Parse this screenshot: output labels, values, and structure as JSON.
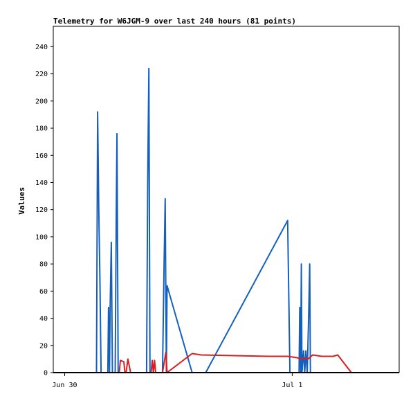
{
  "chart_data": {
    "type": "line",
    "title": "Telemetry for W6JGM-9 over last 240 hours (81 points)",
    "xlabel": "",
    "ylabel": "Values",
    "ylim": [
      0,
      255
    ],
    "yticks": [
      0,
      20,
      40,
      60,
      80,
      100,
      120,
      140,
      160,
      180,
      200,
      220,
      240
    ],
    "xlim": [
      -0.05,
      1.47
    ],
    "xticks": [
      {
        "label": "Jun 30",
        "x": 0
      },
      {
        "label": "Jul 1",
        "x": 1
      }
    ],
    "grid": false,
    "legend": "none",
    "series": [
      {
        "color": "#1560bd",
        "points": [
          [
            0.14,
            0
          ],
          [
            0.145,
            192
          ],
          [
            0.15,
            120
          ],
          [
            0.155,
            70
          ],
          [
            0.16,
            0
          ],
          [
            0.19,
            0
          ],
          [
            0.193,
            48
          ],
          [
            0.197,
            0
          ],
          [
            0.2,
            48
          ],
          [
            0.205,
            96
          ],
          [
            0.21,
            0
          ],
          [
            0.222,
            0
          ],
          [
            0.227,
            120
          ],
          [
            0.23,
            176
          ],
          [
            0.235,
            0
          ],
          [
            0.36,
            0
          ],
          [
            0.365,
            140
          ],
          [
            0.37,
            224
          ],
          [
            0.375,
            0
          ],
          [
            0.43,
            0
          ],
          [
            0.437,
            80
          ],
          [
            0.442,
            128
          ],
          [
            0.447,
            0
          ],
          [
            0.45,
            64
          ],
          [
            0.56,
            0
          ],
          [
            0.62,
            0
          ],
          [
            0.98,
            112
          ],
          [
            0.99,
            0
          ],
          [
            1.03,
            0
          ],
          [
            1.033,
            48
          ],
          [
            1.037,
            0
          ],
          [
            1.04,
            80
          ],
          [
            1.043,
            0
          ],
          [
            1.05,
            16
          ],
          [
            1.055,
            0
          ],
          [
            1.06,
            16
          ],
          [
            1.066,
            0
          ],
          [
            1.072,
            40
          ],
          [
            1.077,
            80
          ],
          [
            1.08,
            0
          ],
          [
            1.47,
            0
          ]
        ]
      },
      {
        "color": "#d81e1e",
        "points": [
          [
            0.14,
            0
          ],
          [
            0.24,
            0
          ],
          [
            0.245,
            9
          ],
          [
            0.26,
            8
          ],
          [
            0.265,
            0
          ],
          [
            0.27,
            0
          ],
          [
            0.278,
            10
          ],
          [
            0.29,
            0
          ],
          [
            0.38,
            0
          ],
          [
            0.385,
            9
          ],
          [
            0.39,
            0
          ],
          [
            0.395,
            9
          ],
          [
            0.4,
            0
          ],
          [
            0.43,
            0
          ],
          [
            0.445,
            15
          ],
          [
            0.45,
            0
          ],
          [
            0.56,
            14
          ],
          [
            0.6,
            13
          ],
          [
            0.9,
            12
          ],
          [
            0.98,
            12
          ],
          [
            1.02,
            11
          ],
          [
            1.04,
            10
          ],
          [
            1.05,
            11
          ],
          [
            1.07,
            10
          ],
          [
            1.09,
            13
          ],
          [
            1.13,
            12
          ],
          [
            1.18,
            12
          ],
          [
            1.2,
            13
          ],
          [
            1.26,
            0
          ],
          [
            1.47,
            0
          ]
        ]
      }
    ]
  }
}
